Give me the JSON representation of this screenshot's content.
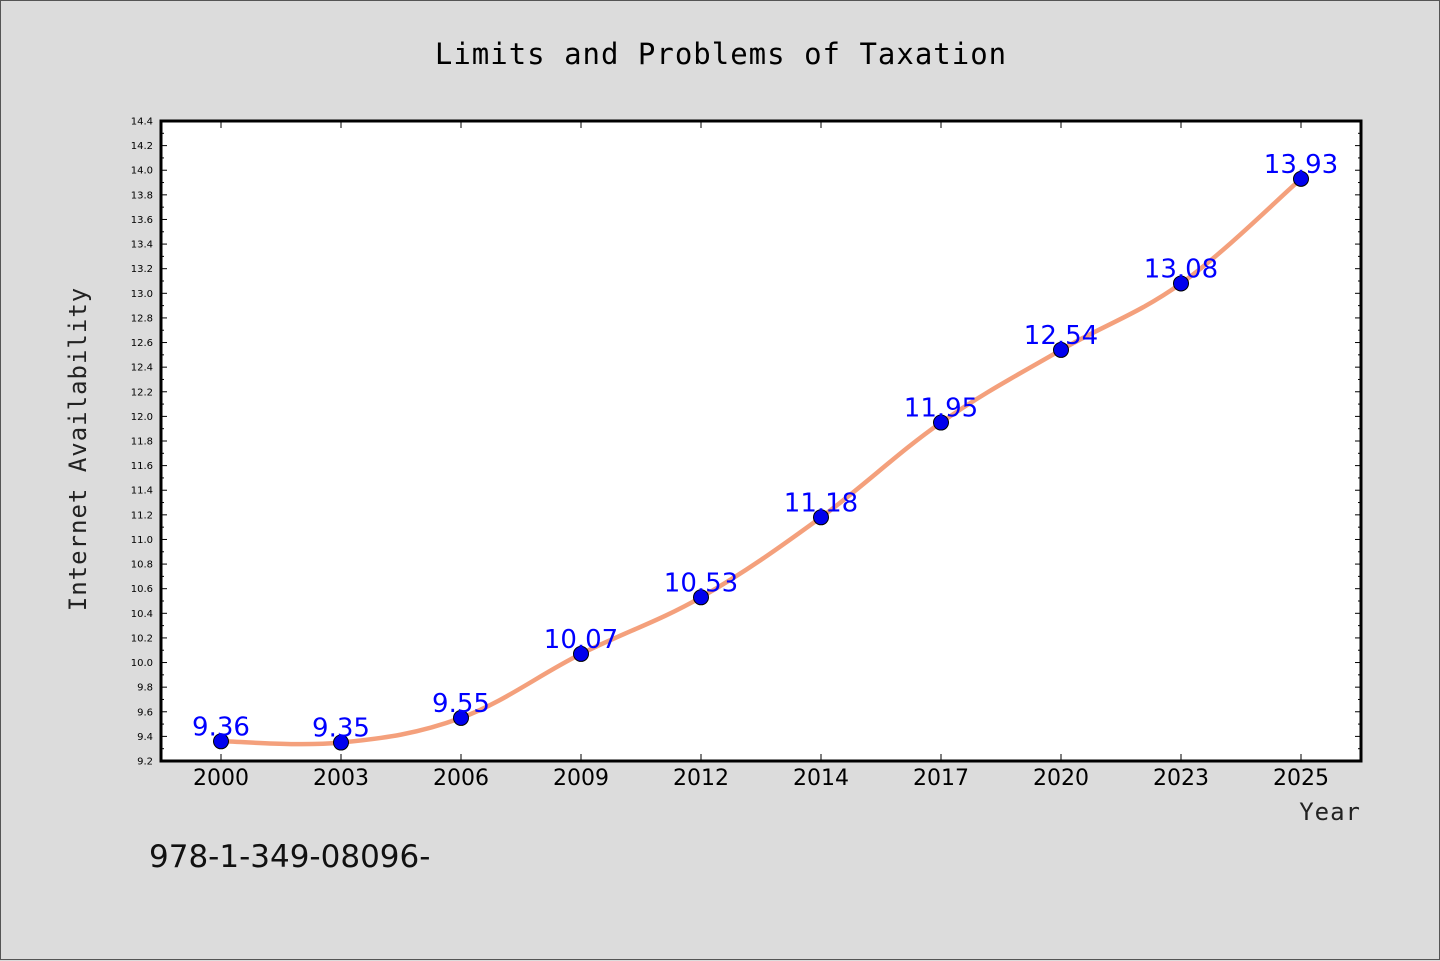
{
  "chart_data": {
    "type": "line",
    "title": "Limits and Problems of Taxation",
    "xlabel": "Year",
    "ylabel": "Internet Availability",
    "categories": [
      "2000",
      "2003",
      "2006",
      "2009",
      "2012",
      "2014",
      "2017",
      "2020",
      "2023",
      "2025"
    ],
    "series": [
      {
        "values": [
          9.36,
          9.35,
          9.55,
          10.07,
          10.53,
          11.18,
          11.95,
          12.54,
          13.08,
          13.93
        ],
        "labels": [
          "9.36",
          "9.35",
          "9.55",
          "10.07",
          "10.53",
          "11.18",
          "11.95",
          "12.54",
          "13.08",
          "13.93"
        ],
        "line_color": "#f4a07c",
        "marker_color": "#0000ee"
      }
    ],
    "ylim": [
      9.2,
      14.4
    ],
    "yticks": [
      "9.2",
      "9.4",
      "9.6",
      "9.8",
      "10.0",
      "10.2",
      "10.4",
      "10.6",
      "10.8",
      "11.0",
      "11.2",
      "11.4",
      "11.6",
      "11.8",
      "12.0",
      "12.2",
      "12.4",
      "12.6",
      "12.8",
      "13.0",
      "13.2",
      "13.4",
      "13.6",
      "13.8",
      "14.0",
      "14.2",
      "14.4"
    ],
    "grid": false,
    "legend": "none",
    "label_color": "#0000ff"
  },
  "footer_text": "978-1-349-08096-"
}
